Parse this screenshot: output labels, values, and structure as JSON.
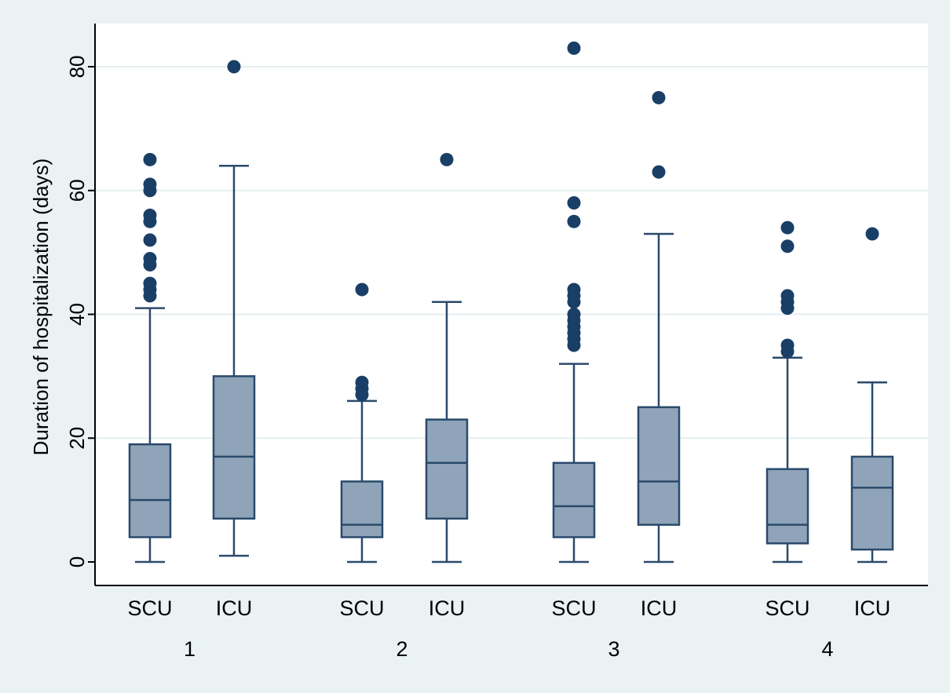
{
  "chart_data": {
    "type": "box",
    "title": "",
    "ylabel": "Duration of hospitalization (days)",
    "ylim": [
      0,
      83
    ],
    "yticks": [
      0,
      20,
      40,
      60,
      80
    ],
    "grid": true,
    "groups": [
      {
        "label": "1",
        "boxes": [
          {
            "category": "SCU",
            "min": 0,
            "q1": 4,
            "median": 10,
            "q3": 19,
            "max": 41,
            "outliers": [
              43,
              44,
              45,
              48,
              49,
              52,
              55,
              56,
              60,
              61,
              65
            ]
          },
          {
            "category": "ICU",
            "min": 1,
            "q1": 7,
            "median": 17,
            "q3": 30,
            "max": 64,
            "outliers": [
              80
            ]
          }
        ]
      },
      {
        "label": "2",
        "boxes": [
          {
            "category": "SCU",
            "min": 0,
            "q1": 4,
            "median": 6,
            "q3": 13,
            "max": 26,
            "outliers": [
              27,
              28,
              29,
              44
            ]
          },
          {
            "category": "ICU",
            "min": 0,
            "q1": 7,
            "median": 16,
            "q3": 23,
            "max": 42,
            "outliers": [
              65
            ]
          }
        ]
      },
      {
        "label": "3",
        "boxes": [
          {
            "category": "SCU",
            "min": 0,
            "q1": 4,
            "median": 9,
            "q3": 16,
            "max": 32,
            "outliers": [
              35,
              36,
              37,
              38,
              39,
              40,
              42,
              43,
              44,
              55,
              58,
              83
            ]
          },
          {
            "category": "ICU",
            "min": 0,
            "q1": 6,
            "median": 13,
            "q3": 25,
            "max": 53,
            "outliers": [
              63,
              75
            ]
          }
        ]
      },
      {
        "label": "4",
        "boxes": [
          {
            "category": "SCU",
            "min": 0,
            "q1": 3,
            "median": 6,
            "q3": 15,
            "max": 33,
            "outliers": [
              34,
              35,
              41,
              42,
              43,
              51,
              54
            ]
          },
          {
            "category": "ICU",
            "min": 0,
            "q1": 2,
            "median": 12,
            "q3": 17,
            "max": 29,
            "outliers": [
              53
            ]
          }
        ]
      }
    ],
    "colors": {
      "box_fill": "#8fa4b8",
      "line": "#2a4a6b",
      "outlier": "#1a3f66",
      "plot_bg": "#ffffff",
      "page_bg": "#eaf2f3",
      "grid": "#e6eef0"
    }
  }
}
